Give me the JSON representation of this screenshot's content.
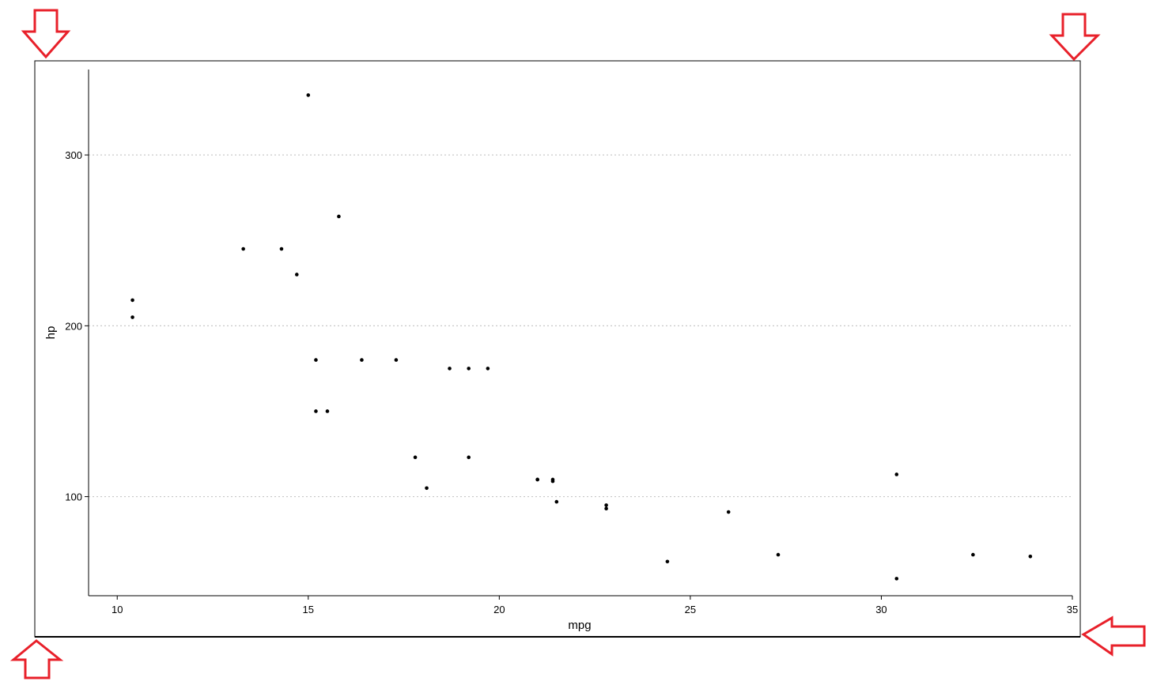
{
  "chart_data": {
    "type": "scatter",
    "title": "",
    "xlabel": "mpg",
    "ylabel": "hp",
    "xlim": [
      9.25,
      35
    ],
    "ylim": [
      42,
      350
    ],
    "x_ticks": [
      10,
      15,
      20,
      25,
      30,
      35
    ],
    "y_ticks": [
      100,
      200,
      300
    ],
    "grid": "horizontal-dotted",
    "legend": "none",
    "point_color": "#000000",
    "series": [
      {
        "points": [
          {
            "x": 21.0,
            "y": 110
          },
          {
            "x": 21.0,
            "y": 110
          },
          {
            "x": 22.8,
            "y": 93
          },
          {
            "x": 21.4,
            "y": 110
          },
          {
            "x": 18.7,
            "y": 175
          },
          {
            "x": 18.1,
            "y": 105
          },
          {
            "x": 14.3,
            "y": 245
          },
          {
            "x": 24.4,
            "y": 62
          },
          {
            "x": 22.8,
            "y": 95
          },
          {
            "x": 19.2,
            "y": 123
          },
          {
            "x": 17.8,
            "y": 123
          },
          {
            "x": 16.4,
            "y": 180
          },
          {
            "x": 17.3,
            "y": 180
          },
          {
            "x": 15.2,
            "y": 180
          },
          {
            "x": 10.4,
            "y": 205
          },
          {
            "x": 10.4,
            "y": 215
          },
          {
            "x": 14.7,
            "y": 230
          },
          {
            "x": 32.4,
            "y": 66
          },
          {
            "x": 30.4,
            "y": 52
          },
          {
            "x": 33.9,
            "y": 65
          },
          {
            "x": 21.5,
            "y": 97
          },
          {
            "x": 15.5,
            "y": 150
          },
          {
            "x": 15.2,
            "y": 150
          },
          {
            "x": 13.3,
            "y": 245
          },
          {
            "x": 19.2,
            "y": 175
          },
          {
            "x": 27.3,
            "y": 66
          },
          {
            "x": 26.0,
            "y": 91
          },
          {
            "x": 30.4,
            "y": 113
          },
          {
            "x": 15.8,
            "y": 264
          },
          {
            "x": 19.7,
            "y": 175
          },
          {
            "x": 15.0,
            "y": 335
          },
          {
            "x": 21.4,
            "y": 109
          }
        ]
      }
    ]
  },
  "annotations": {
    "frame_color": "#000000",
    "arrow_color": "#e8202a",
    "arrows": [
      "arrow-down-icon",
      "arrow-down-icon",
      "arrow-up-icon",
      "arrow-left-icon"
    ]
  }
}
